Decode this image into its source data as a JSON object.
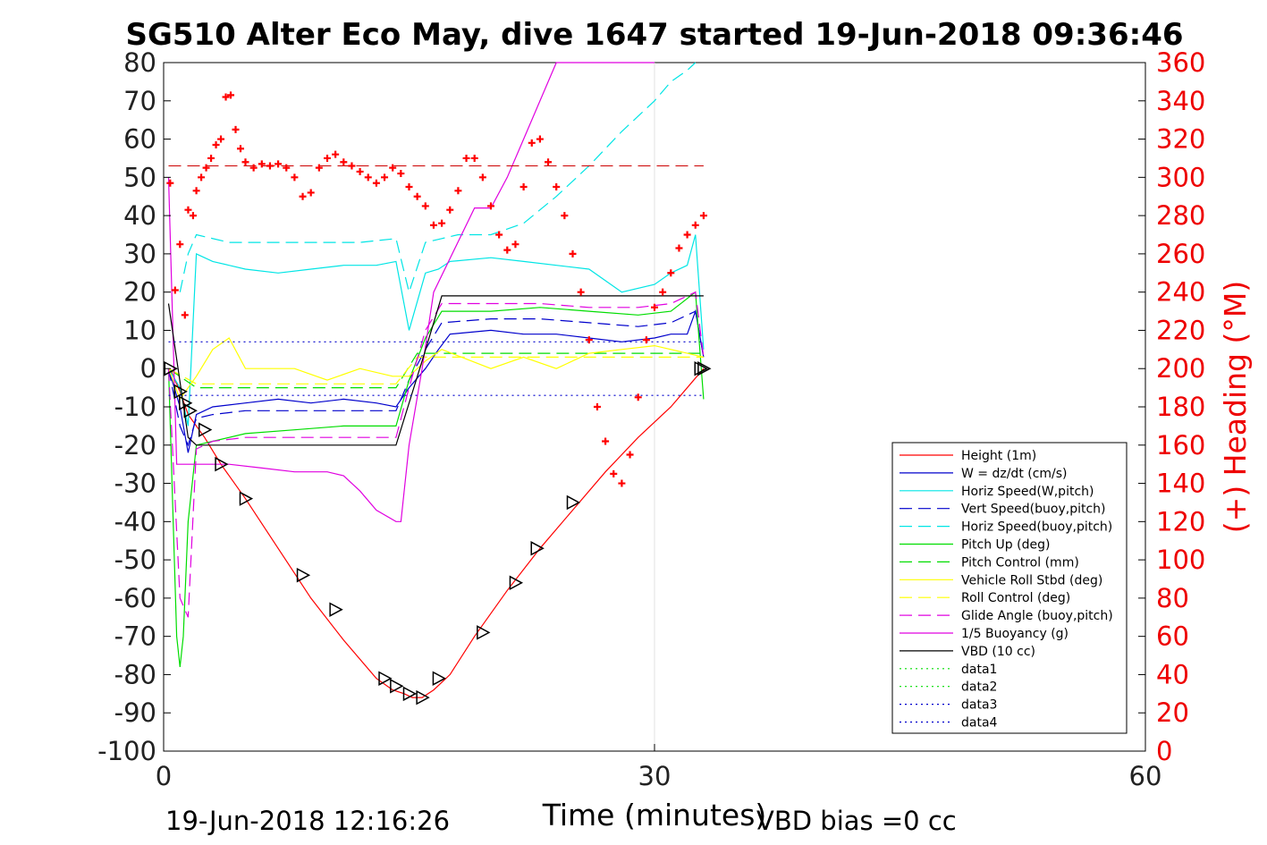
{
  "chart_data": {
    "type": "line",
    "title": "SG510 Alter Eco May, dive 1647 started 19-Jun-2018 09:36:46",
    "xlabel": "Time (minutes)",
    "ylabel_left": "",
    "ylabel_right": "(+) Heading (°M)",
    "xlim": [
      0,
      60
    ],
    "ylim_left": [
      -100,
      80
    ],
    "ylim_right": [
      0,
      360
    ],
    "x_ticks": [
      "0",
      "30",
      "60"
    ],
    "y_ticks_left": [
      "80",
      "70",
      "60",
      "50",
      "40",
      "30",
      "20",
      "10",
      "0",
      "-10",
      "-20",
      "-30",
      "-40",
      "-50",
      "-60",
      "-70",
      "-80",
      "-90",
      "-100"
    ],
    "y_ticks_right": [
      "360",
      "340",
      "320",
      "300",
      "280",
      "260",
      "240",
      "220",
      "200",
      "180",
      "160",
      "140",
      "120",
      "100",
      "80",
      "60",
      "40",
      "20",
      "0"
    ],
    "grid": "x only at 30",
    "legend_position": "lower-right",
    "footer_left": "19-Jun-2018 12:16:26",
    "footer_right": "VBD bias =0 cc",
    "colors": {
      "height": "#ff0000",
      "w": "#0000cc",
      "horiz": "#00e5e5",
      "pitch": "#00dd00",
      "roll": "#ffff00",
      "glide": "#e000e0",
      "buoy": "#e000e0",
      "vbd": "#000000",
      "heading": "#ff0000"
    },
    "series": [
      {
        "name": "Height (1m)",
        "style": "solid",
        "color": "#ff0000",
        "x": [
          0.4,
          1.0,
          1.5,
          2.5,
          3.5,
          5.0,
          7.0,
          9.0,
          11.0,
          13.0,
          14.0,
          14.7,
          15.2,
          15.8,
          16.5,
          17.5,
          19.0,
          21.0,
          23.0,
          25.0,
          27.0,
          29.0,
          31.0,
          33.0
        ],
        "y": [
          0,
          -6,
          -12,
          -18,
          -25,
          -34,
          -47,
          -60,
          -71,
          -81,
          -84,
          -85,
          -86,
          -86,
          -84,
          -80,
          -70,
          -58,
          -47,
          -37,
          -27,
          -18,
          -10,
          0
        ]
      },
      {
        "name": "W = dz/dt (cm/s)",
        "style": "solid",
        "color": "#0000cc",
        "x": [
          0.3,
          1.0,
          1.5,
          2.0,
          3,
          5,
          7,
          9,
          11,
          13,
          14.2,
          15,
          16,
          16.8,
          17.5,
          20,
          22,
          24,
          26,
          28,
          30,
          31,
          32,
          32.5,
          33
        ],
        "y": [
          0,
          -10,
          -22,
          -12,
          -10,
          -9,
          -8,
          -9,
          -8,
          -9,
          -10,
          -5,
          0,
          5,
          9,
          10,
          9,
          9,
          8,
          7,
          8,
          9,
          9,
          15,
          3
        ]
      },
      {
        "name": "Horiz Speed(W,pitch)",
        "style": "solid",
        "color": "#00e5e5",
        "x": [
          0.3,
          1.0,
          1.5,
          2.0,
          3,
          5,
          7,
          9,
          11,
          13,
          14.2,
          15,
          16,
          16.8,
          17.5,
          20,
          22,
          24,
          26,
          28,
          30,
          31,
          32,
          32.5,
          33
        ],
        "y": [
          0,
          -5,
          -15,
          30,
          28,
          26,
          25,
          26,
          27,
          27,
          28,
          10,
          25,
          26,
          28,
          29,
          28,
          27,
          26,
          20,
          22,
          25,
          27,
          35,
          5
        ]
      },
      {
        "name": "Vert Speed(buoy,pitch)",
        "style": "dashed",
        "color": "#0000cc",
        "x": [
          0.3,
          1.0,
          1.5,
          2,
          3,
          5,
          8,
          11,
          14.2,
          15,
          16,
          17,
          20,
          23,
          26,
          29,
          31,
          32.5,
          33
        ],
        "y": [
          0,
          -15,
          -20,
          -13,
          -12,
          -11,
          -11,
          -11,
          -11,
          -3,
          5,
          12,
          13,
          13,
          12,
          11,
          12,
          15,
          3
        ]
      },
      {
        "name": "Horiz Speed(buoy,pitch)",
        "style": "dashed",
        "color": "#00e5e5",
        "x": [
          1.0,
          1.5,
          2,
          4,
          8,
          12,
          14.2,
          15,
          16,
          17,
          18,
          20,
          22,
          24,
          26,
          28,
          30,
          31,
          32,
          32.5
        ],
        "y": [
          20,
          30,
          35,
          33,
          33,
          33,
          34,
          20,
          33,
          34,
          35,
          35,
          38,
          45,
          53,
          62,
          70,
          75,
          78,
          80
        ]
      },
      {
        "name": "Pitch Up (deg)",
        "style": "solid",
        "color": "#00dd00",
        "x": [
          0.3,
          0.8,
          1.0,
          1.2,
          1.5,
          2,
          3,
          5,
          8,
          11,
          14.2,
          15,
          16,
          17,
          20,
          23,
          26,
          29,
          31,
          32.5,
          33
        ],
        "y": [
          0,
          -70,
          -78,
          -70,
          -40,
          -20,
          -19,
          -17,
          -16,
          -15,
          -15,
          -3,
          8,
          15,
          15,
          16,
          15,
          14,
          15,
          20,
          -8
        ]
      },
      {
        "name": "Pitch Control (mm)",
        "style": "dashed",
        "color": "#00dd00",
        "x": [
          0.3,
          2,
          14.2,
          15.5,
          33
        ],
        "y": [
          0,
          -5,
          -5,
          4,
          4
        ]
      },
      {
        "name": "Vehicle Roll Stbd (deg)",
        "style": "solid",
        "color": "#ffff00",
        "x": [
          0.3,
          1,
          2,
          3,
          4,
          5,
          8,
          10,
          12,
          14,
          15,
          16,
          17,
          20,
          22,
          24,
          26,
          28,
          30,
          32,
          33
        ],
        "y": [
          0,
          -8,
          -2,
          5,
          8,
          0,
          0,
          -3,
          0,
          -2,
          -2,
          2,
          5,
          0,
          3,
          0,
          4,
          5,
          6,
          4,
          3
        ]
      },
      {
        "name": "Roll Control (deg)",
        "style": "dashed",
        "color": "#ffff00",
        "x": [
          0.3,
          2,
          14.2,
          15.5,
          33
        ],
        "y": [
          0,
          -4,
          -4,
          3,
          3
        ]
      },
      {
        "name": "Glide Angle (buoy,pitch)",
        "style": "dashed",
        "color": "#e000e0",
        "x": [
          0.3,
          1.0,
          1.5,
          2,
          3,
          5,
          8,
          11,
          14.2,
          15,
          16,
          17,
          20,
          23,
          26,
          29,
          31,
          32.5,
          33
        ],
        "y": [
          0,
          -60,
          -65,
          -21,
          -19,
          -18,
          -18,
          -18,
          -18,
          -5,
          10,
          17,
          17,
          17,
          16,
          16,
          17,
          20,
          3
        ]
      },
      {
        "name": "1/5 Buoyancy (g)",
        "style": "solid",
        "color": "#e000e0",
        "x": [
          0.3,
          0.8,
          1.2,
          2,
          4,
          6,
          8,
          10,
          11,
          12,
          13,
          14.2,
          14.5,
          15,
          15.8,
          16.5,
          19,
          20,
          21,
          22,
          24,
          30
        ],
        "y": [
          50,
          -25,
          -25,
          -25,
          -25,
          -26,
          -27,
          -27,
          -28,
          -32,
          -37,
          -40,
          -40,
          -20,
          0,
          20,
          42,
          42,
          50,
          60,
          80,
          100
        ]
      },
      {
        "name": "VBD (10 cc)",
        "style": "solid",
        "color": "#000000",
        "x": [
          0.3,
          1.5,
          2,
          14.2,
          15.8,
          17,
          33
        ],
        "y": [
          17,
          -18,
          -20,
          -20,
          2,
          19,
          19
        ]
      },
      {
        "name": "data1",
        "style": "dotted",
        "color": "#00dd00",
        "x": [],
        "y": []
      },
      {
        "name": "data2",
        "style": "dotted",
        "color": "#00dd00",
        "x": [],
        "y": []
      },
      {
        "name": "data3",
        "style": "dotted",
        "color": "#0000cc",
        "x": [
          0.3,
          33
        ],
        "y": [
          7,
          7
        ]
      },
      {
        "name": "data4",
        "style": "dotted",
        "color": "#0000cc",
        "x": [
          0.3,
          33
        ],
        "y": [
          -7,
          -7
        ]
      }
    ],
    "reference_line": {
      "color": "#cc0000",
      "style": "dashed",
      "x": [
        0.3,
        33
      ],
      "y": [
        53,
        53
      ]
    },
    "heading_points": {
      "x": [
        0.4,
        0.7,
        1.0,
        1.3,
        1.5,
        1.8,
        2.0,
        2.3,
        2.6,
        2.9,
        3.2,
        3.5,
        3.8,
        4.1,
        4.4,
        4.7,
        5.0,
        5.5,
        6,
        6.5,
        7,
        7.5,
        8,
        8.5,
        9,
        9.5,
        10,
        10.5,
        11,
        11.5,
        12,
        12.5,
        13,
        13.5,
        14,
        14.5,
        15,
        15.5,
        16,
        16.5,
        17,
        17.5,
        18,
        18.5,
        19,
        19.5,
        20,
        20.5,
        21,
        21.5,
        22,
        22.5,
        23,
        23.5,
        24,
        24.5,
        25,
        25.5,
        26,
        26.5,
        27,
        27.5,
        28,
        28.5,
        29,
        29.5,
        30,
        30.5,
        31,
        31.5,
        32,
        32.5,
        33
      ],
      "y": [
        297,
        241,
        265,
        228,
        283,
        280,
        293,
        300,
        305,
        310,
        317,
        320,
        342,
        343,
        325,
        315,
        308,
        305,
        307,
        306,
        307,
        305,
        300,
        290,
        292,
        305,
        310,
        312,
        308,
        306,
        303,
        300,
        297,
        300,
        305,
        302,
        295,
        290,
        285,
        275,
        276,
        283,
        293,
        310,
        310,
        300,
        285,
        270,
        262,
        265,
        295,
        318,
        320,
        308,
        295,
        280,
        260,
        240,
        215,
        180,
        162,
        145,
        140,
        155,
        185,
        215,
        232,
        240,
        250,
        263,
        270,
        275,
        280
      ]
    },
    "wedge_markers": {
      "x": [
        0.4,
        1.0,
        1.3,
        1.6,
        2.5,
        3.5,
        5.0,
        8.5,
        10.5,
        13.5,
        14.2,
        15.0,
        15.8,
        16.8,
        19.5,
        21.5,
        22.8,
        25.0,
        32.8,
        33.0
      ],
      "y": [
        0,
        -6,
        -9,
        -11,
        -16,
        -25,
        -34,
        -54,
        -63,
        -81,
        -83,
        -85,
        -86,
        -81,
        -69,
        -56,
        -47,
        -35,
        0,
        0
      ]
    }
  }
}
